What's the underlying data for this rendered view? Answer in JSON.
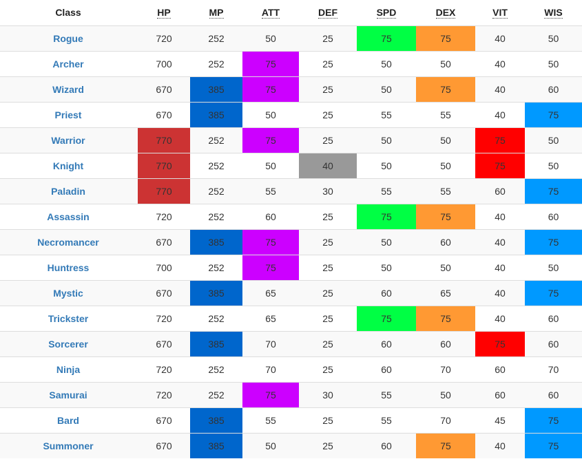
{
  "columns": [
    {
      "key": "class",
      "label": "Class"
    },
    {
      "key": "hp",
      "label": "HP"
    },
    {
      "key": "mp",
      "label": "MP"
    },
    {
      "key": "att",
      "label": "ATT"
    },
    {
      "key": "def",
      "label": "DEF"
    },
    {
      "key": "spd",
      "label": "SPD"
    },
    {
      "key": "dex",
      "label": "DEX"
    },
    {
      "key": "vit",
      "label": "VIT"
    },
    {
      "key": "wis",
      "label": "WIS"
    }
  ],
  "highlight_colors": {
    "hp": "#cc3333",
    "mp": "#0066cc",
    "att": "#cc00ff",
    "def": "#999999",
    "spd": "#00ff44",
    "dex": "#ff9933",
    "vit": "#ff0000",
    "wis": "#0099ff"
  },
  "rows": [
    {
      "class": "Rogue",
      "hp": "720",
      "mp": "252",
      "att": "50",
      "def": "25",
      "spd": "75",
      "dex": "75",
      "vit": "40",
      "wis": "50",
      "highlighted": [
        "spd",
        "dex"
      ]
    },
    {
      "class": "Archer",
      "hp": "700",
      "mp": "252",
      "att": "75",
      "def": "25",
      "spd": "50",
      "dex": "50",
      "vit": "40",
      "wis": "50",
      "highlighted": [
        "att"
      ]
    },
    {
      "class": "Wizard",
      "hp": "670",
      "mp": "385",
      "att": "75",
      "def": "25",
      "spd": "50",
      "dex": "75",
      "vit": "40",
      "wis": "60",
      "highlighted": [
        "mp",
        "att",
        "dex"
      ]
    },
    {
      "class": "Priest",
      "hp": "670",
      "mp": "385",
      "att": "50",
      "def": "25",
      "spd": "55",
      "dex": "55",
      "vit": "40",
      "wis": "75",
      "highlighted": [
        "mp",
        "wis"
      ]
    },
    {
      "class": "Warrior",
      "hp": "770",
      "mp": "252",
      "att": "75",
      "def": "25",
      "spd": "50",
      "dex": "50",
      "vit": "75",
      "wis": "50",
      "highlighted": [
        "hp",
        "att",
        "vit"
      ]
    },
    {
      "class": "Knight",
      "hp": "770",
      "mp": "252",
      "att": "50",
      "def": "40",
      "spd": "50",
      "dex": "50",
      "vit": "75",
      "wis": "50",
      "highlighted": [
        "hp",
        "def",
        "vit"
      ]
    },
    {
      "class": "Paladin",
      "hp": "770",
      "mp": "252",
      "att": "55",
      "def": "30",
      "spd": "55",
      "dex": "55",
      "vit": "60",
      "wis": "75",
      "highlighted": [
        "hp",
        "wis"
      ]
    },
    {
      "class": "Assassin",
      "hp": "720",
      "mp": "252",
      "att": "60",
      "def": "25",
      "spd": "75",
      "dex": "75",
      "vit": "40",
      "wis": "60",
      "highlighted": [
        "spd",
        "dex"
      ]
    },
    {
      "class": "Necromancer",
      "hp": "670",
      "mp": "385",
      "att": "75",
      "def": "25",
      "spd": "50",
      "dex": "60",
      "vit": "40",
      "wis": "75",
      "highlighted": [
        "mp",
        "att",
        "wis"
      ]
    },
    {
      "class": "Huntress",
      "hp": "700",
      "mp": "252",
      "att": "75",
      "def": "25",
      "spd": "50",
      "dex": "50",
      "vit": "40",
      "wis": "50",
      "highlighted": [
        "att"
      ]
    },
    {
      "class": "Mystic",
      "hp": "670",
      "mp": "385",
      "att": "65",
      "def": "25",
      "spd": "60",
      "dex": "65",
      "vit": "40",
      "wis": "75",
      "highlighted": [
        "mp",
        "wis"
      ]
    },
    {
      "class": "Trickster",
      "hp": "720",
      "mp": "252",
      "att": "65",
      "def": "25",
      "spd": "75",
      "dex": "75",
      "vit": "40",
      "wis": "60",
      "highlighted": [
        "spd",
        "dex"
      ]
    },
    {
      "class": "Sorcerer",
      "hp": "670",
      "mp": "385",
      "att": "70",
      "def": "25",
      "spd": "60",
      "dex": "60",
      "vit": "75",
      "wis": "60",
      "highlighted": [
        "mp",
        "vit"
      ]
    },
    {
      "class": "Ninja",
      "hp": "720",
      "mp": "252",
      "att": "70",
      "def": "25",
      "spd": "60",
      "dex": "70",
      "vit": "60",
      "wis": "70",
      "highlighted": []
    },
    {
      "class": "Samurai",
      "hp": "720",
      "mp": "252",
      "att": "75",
      "def": "30",
      "spd": "55",
      "dex": "50",
      "vit": "60",
      "wis": "60",
      "highlighted": [
        "att"
      ]
    },
    {
      "class": "Bard",
      "hp": "670",
      "mp": "385",
      "att": "55",
      "def": "25",
      "spd": "55",
      "dex": "70",
      "vit": "45",
      "wis": "75",
      "highlighted": [
        "mp",
        "wis"
      ]
    },
    {
      "class": "Summoner",
      "hp": "670",
      "mp": "385",
      "att": "50",
      "def": "25",
      "spd": "60",
      "dex": "75",
      "vit": "40",
      "wis": "75",
      "highlighted": [
        "mp",
        "dex",
        "wis"
      ]
    }
  ]
}
